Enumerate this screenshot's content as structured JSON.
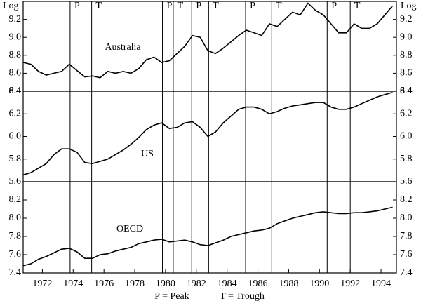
{
  "axis_unit": "Log",
  "x": [
    1970.75,
    1971.25,
    1971.75,
    1972.25,
    1972.75,
    1973.25,
    1973.75,
    1974.25,
    1974.75,
    1975.25,
    1975.75,
    1976.25,
    1976.75,
    1977.25,
    1977.75,
    1978.25,
    1978.75,
    1979.25,
    1979.75,
    1980.25,
    1980.75,
    1981.25,
    1981.75,
    1982.25,
    1982.75,
    1983.25,
    1983.75,
    1984.25,
    1984.75,
    1985.25,
    1985.75,
    1986.25,
    1986.75,
    1987.25,
    1987.75,
    1988.25,
    1988.75,
    1989.25,
    1989.75,
    1990.25,
    1990.75,
    1991.25,
    1991.75,
    1992.25,
    1992.75,
    1993.25,
    1993.75,
    1994.25,
    1994.75
  ],
  "xlim": [
    1970.75,
    1995
  ],
  "xticks": [
    1972,
    1974,
    1976,
    1978,
    1980,
    1982,
    1984,
    1986,
    1988,
    1990,
    1992,
    1994
  ],
  "cycles": [
    {
      "x": 1973.8,
      "label": "P"
    },
    {
      "x": 1975.2,
      "label": "T"
    },
    {
      "x": 1979.8,
      "label": "P"
    },
    {
      "x": 1980.5,
      "label": "T"
    },
    {
      "x": 1981.7,
      "label": "P"
    },
    {
      "x": 1982.8,
      "label": "T"
    },
    {
      "x": 1985.2,
      "label": "P"
    },
    {
      "x": 1986.9,
      "label": "T"
    },
    {
      "x": 1990.5,
      "label": "P"
    },
    {
      "x": 1992.0,
      "label": "T"
    }
  ],
  "footnote": [
    "P = Peak",
    "T = Trough"
  ],
  "chart_data": [
    {
      "type": "line",
      "ylim": [
        8.4,
        9.4
      ],
      "yticks": [
        8.4,
        8.6,
        8.8,
        {
          "value": 9,
          "label": "9.0"
        },
        9.2
      ],
      "series": [
        {
          "name": "Australia",
          "color": "#000000",
          "values": [
            8.72,
            8.7,
            8.62,
            8.58,
            8.6,
            8.62,
            8.7,
            8.63,
            8.56,
            8.57,
            8.55,
            8.62,
            8.6,
            8.62,
            8.6,
            8.65,
            8.75,
            8.78,
            8.72,
            8.74,
            8.82,
            8.9,
            9.02,
            9.0,
            8.85,
            8.82,
            8.88,
            8.95,
            9.02,
            9.08,
            9.05,
            9.02,
            9.15,
            9.12,
            9.2,
            9.28,
            9.25,
            9.38,
            9.3,
            9.25,
            9.15,
            9.05,
            9.05,
            9.15,
            9.1,
            9.1,
            9.15,
            9.25,
            9.35
          ]
        }
      ]
    },
    {
      "type": "line",
      "ylim": [
        5.6,
        6.4
      ],
      "yticks": [
        5.6,
        5.8,
        {
          "value": 6,
          "label": "6.0"
        },
        6.2,
        6.4
      ],
      "series": [
        {
          "name": "US",
          "color": "#000000",
          "values": [
            5.66,
            5.68,
            5.72,
            5.76,
            5.84,
            5.89,
            5.89,
            5.86,
            5.77,
            5.76,
            5.78,
            5.8,
            5.84,
            5.88,
            5.93,
            5.99,
            6.06,
            6.1,
            6.12,
            6.07,
            6.08,
            6.12,
            6.13,
            6.08,
            6.0,
            6.04,
            6.12,
            6.18,
            6.24,
            6.26,
            6.26,
            6.24,
            6.2,
            6.22,
            6.25,
            6.27,
            6.28,
            6.29,
            6.3,
            6.3,
            6.26,
            6.24,
            6.24,
            6.26,
            6.29,
            6.32,
            6.35,
            6.37,
            6.39
          ]
        }
      ]
    },
    {
      "type": "line",
      "ylim": [
        7.4,
        8.4
      ],
      "yticks": [
        7.4,
        7.6,
        7.8,
        {
          "value": 8,
          "label": "8.0"
        },
        8.2
      ],
      "series": [
        {
          "name": "OECD",
          "color": "#000000",
          "values": [
            7.48,
            7.5,
            7.55,
            7.58,
            7.62,
            7.66,
            7.67,
            7.63,
            7.56,
            7.56,
            7.6,
            7.61,
            7.64,
            7.66,
            7.68,
            7.72,
            7.74,
            7.76,
            7.77,
            7.74,
            7.75,
            7.76,
            7.74,
            7.71,
            7.7,
            7.73,
            7.76,
            7.8,
            7.82,
            7.84,
            7.86,
            7.87,
            7.89,
            7.94,
            7.97,
            8.0,
            8.02,
            8.04,
            8.06,
            8.07,
            8.06,
            8.05,
            8.05,
            8.06,
            8.06,
            8.07,
            8.08,
            8.1,
            8.12
          ]
        }
      ]
    }
  ]
}
